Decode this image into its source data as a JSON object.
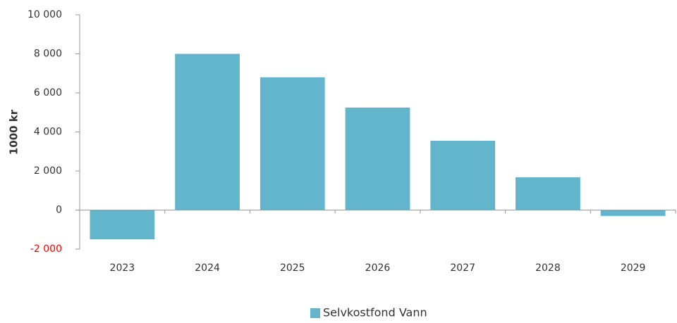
{
  "chart_data": {
    "type": "bar",
    "y_label": "1000 kr",
    "categories": [
      "2023",
      "2024",
      "2025",
      "2026",
      "2027",
      "2028",
      "2029"
    ],
    "series": [
      {
        "name": "Selvkostfond Vann",
        "color": "#62b5cb",
        "values": [
          -1500,
          8000,
          6800,
          5250,
          3550,
          1680,
          -300
        ]
      }
    ],
    "ylim": [
      -2000,
      10000
    ],
    "yticks": [
      {
        "value": -2000,
        "label": "-2 000"
      },
      0,
      {
        "value": 2000,
        "label": "2 000"
      },
      {
        "value": 4000,
        "label": "4 000"
      },
      {
        "value": 6000,
        "label": "6 000"
      },
      {
        "value": 8000,
        "label": "8 000"
      },
      {
        "value": 10000,
        "label": "10 000"
      }
    ],
    "negative_tick_color": "#ff0000",
    "grid": false,
    "legend": "bottom"
  }
}
